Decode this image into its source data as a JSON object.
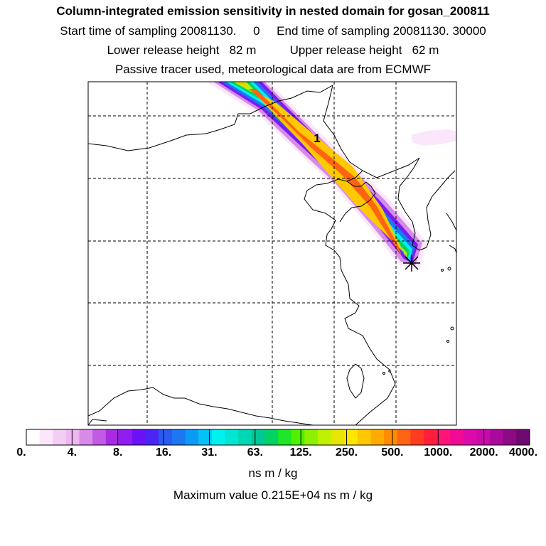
{
  "header": {
    "title": "Column-integrated emission sensitivity in nested domain for gosan_200811",
    "sampling_line": "Start time of sampling 20081130.     0     End time of sampling 20081130. 30000",
    "release_line": "Lower release height   82 m          Upper release height   62 m",
    "tracer_line": "Passive tracer used, meteorological data are from ECMWF"
  },
  "map": {
    "plume_label": "1",
    "receptor_marker": "asterisk"
  },
  "colorbar": {
    "tick_labels": [
      "0.",
      "4.",
      "8.",
      "16.",
      "31.",
      "63.",
      "125.",
      "250.",
      "500.",
      "1000.",
      "2000.",
      "4000."
    ],
    "colors": [
      "#ffffff",
      "#fbe6fb",
      "#f4cdf4",
      "#eeb6f2",
      "#d68be8",
      "#c25ae6",
      "#a82be3",
      "#8f1df2",
      "#6a12f5",
      "#4a25f5",
      "#2a5af0",
      "#1c77f0",
      "#0a9cf5",
      "#05c2f5",
      "#00f0f0",
      "#00e6d2",
      "#00d7b4",
      "#00c896",
      "#00d264",
      "#1ee628",
      "#50f000",
      "#8cf000",
      "#bef000",
      "#e6e600",
      "#ffe600",
      "#ffc800",
      "#ffaa00",
      "#ff8c00",
      "#ff6414",
      "#ff3c1e",
      "#ff1e3c",
      "#ff1478",
      "#f00a96",
      "#dc0aaa",
      "#c80aaa",
      "#aa0a9b",
      "#8c0a82",
      "#6e0a6e"
    ]
  },
  "units": "ns m / kg",
  "maximum_line": "Maximum value  0.215E+04 ns m / kg"
}
